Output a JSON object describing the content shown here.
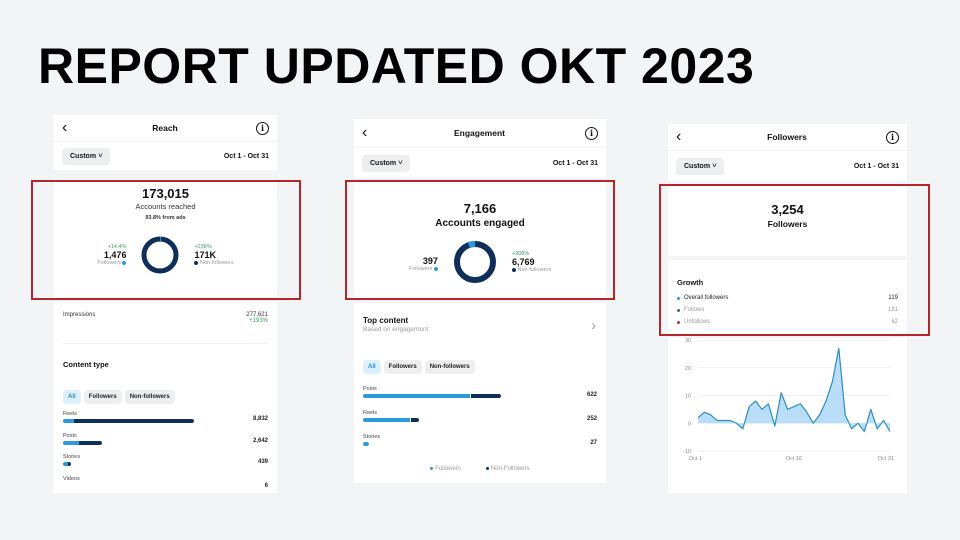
{
  "heading": "REPORT UPDATED OKT 2023",
  "common": {
    "back_icon": "‹",
    "info_icon": "i",
    "filter_label": "Custom",
    "chevron": "v",
    "date_range": "Oct 1 - Oct 31"
  },
  "colors": {
    "followers": "#2d9ae0",
    "non_followers": "#0f2f5a",
    "highlight_box": "#b3262b",
    "positive": "#3d9a5b",
    "unfollows": "#c0303a",
    "follows": "#2f7a3f"
  },
  "reach": {
    "title": "Reach",
    "total": "173,015",
    "total_label": "Accounts reached",
    "ads_note": "93.8% from ads",
    "followers": {
      "pct": "+14.4%",
      "value": "1,476",
      "label": "Followers"
    },
    "non_followers": {
      "pct": "+236%",
      "value": "171K",
      "label": "Non-followers"
    },
    "impressions": {
      "label": "Impressions",
      "value": "277,621",
      "change": "+193%"
    },
    "content_type": {
      "title": "Content type",
      "filters": [
        "All",
        "Followers",
        "Non-followers"
      ],
      "items": [
        {
          "label": "Reels",
          "value": "8,832",
          "f": 5,
          "n": 56
        },
        {
          "label": "Posts",
          "value": "2,642",
          "f": 7,
          "n": 11
        },
        {
          "label": "Stories",
          "value": "439",
          "f": 3,
          "n": 1
        },
        {
          "label": "Videos",
          "value": "6",
          "f": 0,
          "n": 0
        }
      ]
    }
  },
  "engagement": {
    "title": "Engagement",
    "total": "7,166",
    "total_label": "Accounts engaged",
    "followers": {
      "value": "397",
      "label": "Followers"
    },
    "non_followers": {
      "pct": "+908%",
      "value": "6,769",
      "label": "Non-followers"
    },
    "top_content": {
      "title": "Top content",
      "subtitle": "Based on engagement",
      "chevron": "›",
      "filters": [
        "All",
        "Followers",
        "Non-followers"
      ],
      "items": [
        {
          "label": "Posts",
          "value": "622",
          "f": 46,
          "n": 13
        },
        {
          "label": "Reels",
          "value": "252",
          "f": 20,
          "n": 4
        },
        {
          "label": "Stories",
          "value": "27",
          "f": 2,
          "n": 0
        }
      ],
      "legend": [
        "Followers",
        "Non-Followers"
      ]
    }
  },
  "followers": {
    "title": "Followers",
    "total": "3,254",
    "total_label": "Followers",
    "growth": {
      "title": "Growth",
      "rows": [
        {
          "label": "Overall followers",
          "value": "119"
        },
        {
          "label": "Follows",
          "value": "181"
        },
        {
          "label": "Unfollows",
          "value": "62"
        }
      ]
    }
  },
  "chart_data": {
    "type": "area",
    "title": "Followers growth",
    "x_labels": [
      "Oct 1",
      "Oct 16",
      "Oct 31"
    ],
    "y_ticks": [
      30,
      20,
      10,
      0,
      -10
    ],
    "ylim": [
      -10,
      30
    ],
    "x": [
      1,
      2,
      3,
      4,
      5,
      6,
      7,
      8,
      9,
      10,
      11,
      12,
      13,
      14,
      15,
      16,
      17,
      18,
      19,
      20,
      21,
      22,
      23,
      24,
      25,
      26,
      27,
      28,
      29,
      30,
      31
    ],
    "values": [
      2,
      4,
      3,
      1,
      1,
      1,
      0,
      -2,
      6,
      8,
      5,
      7,
      -1,
      11,
      5,
      6,
      7,
      4,
      0,
      3,
      8,
      15,
      27,
      3,
      -2,
      0,
      -3,
      5,
      -2,
      1,
      -3
    ],
    "grid": true
  }
}
